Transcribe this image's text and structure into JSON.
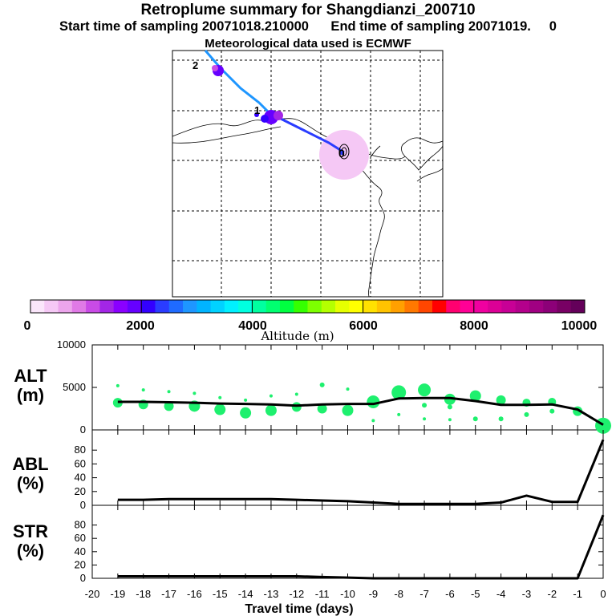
{
  "header": {
    "title": "Retroplume summary for Shangdianzi_200710",
    "sampling_line": "Start time of sampling 20071018.210000      End time of sampling 20071019.     0",
    "met_line": "Meteorological data used is ECMWF"
  },
  "colorbar": {
    "xlabel": "Altitude (m)",
    "ticks": [
      "0",
      "2000",
      "4000",
      "6000",
      "8000",
      "10000"
    ],
    "colors": [
      "#fbe6fb",
      "#f5c8f5",
      "#eca5ec",
      "#e07ae6",
      "#c94be6",
      "#a326e6",
      "#8a00ff",
      "#6600ff",
      "#3300ff",
      "#2a3cff",
      "#1f6bff",
      "#1e96ff",
      "#00b4ff",
      "#00d2ff",
      "#00f0ff",
      "#00ffe0",
      "#00ffa0",
      "#00ff70",
      "#00ff40",
      "#35ff00",
      "#7dff00",
      "#b4ff00",
      "#e6ff00",
      "#ffff00",
      "#ffe100",
      "#ffc300",
      "#ffa000",
      "#ff7800",
      "#ff4600",
      "#ff0000",
      "#ff0070",
      "#ff0096",
      "#f000a0",
      "#dc0096",
      "#c80096",
      "#b4008c",
      "#a00082",
      "#8c0078",
      "#780064",
      "#64005a"
    ]
  },
  "chart_data": [
    {
      "type": "line",
      "panel": "ALT",
      "ylabel": "ALT\n(m)",
      "x": [
        -19,
        -18,
        -17,
        -16,
        -15,
        -14,
        -13,
        -12,
        -11,
        -10,
        -9,
        -8,
        -7,
        -6,
        -5,
        -4,
        -3,
        -2,
        -1,
        0
      ],
      "y": [
        3300,
        3300,
        3250,
        3200,
        3100,
        3050,
        3000,
        2850,
        3000,
        3050,
        3050,
        3700,
        3750,
        3750,
        3400,
        2950,
        2950,
        3000,
        2400,
        600
      ],
      "xlim": [
        -20,
        0
      ],
      "ylim": [
        0,
        10000
      ],
      "yticks": [
        "0",
        "5000",
        "10000"
      ],
      "clusters": {
        "x": [
          -19,
          -19,
          -18,
          -18,
          -17,
          -17,
          -16,
          -16,
          -15,
          -15,
          -14,
          -14,
          -13,
          -13,
          -12,
          -12,
          -11,
          -11,
          -10,
          -10,
          -9,
          -9,
          -8,
          -8,
          -7,
          -7,
          -7,
          -6,
          -6,
          -6,
          -5,
          -5,
          -4,
          -4,
          -3,
          -3,
          -2,
          -2,
          -1,
          0
        ],
        "y": [
          3200,
          5200,
          3000,
          4700,
          2800,
          4500,
          2800,
          4300,
          2400,
          3800,
          2000,
          3500,
          2300,
          4000,
          2700,
          4200,
          2500,
          5300,
          2300,
          4800,
          3300,
          1100,
          4400,
          1800,
          4700,
          2900,
          1300,
          3600,
          2700,
          1200,
          4000,
          1300,
          3500,
          1300,
          3200,
          1800,
          3300,
          2200,
          2200,
          500
        ],
        "r": [
          6,
          2,
          6,
          2,
          6,
          2,
          7,
          2,
          7,
          2,
          7,
          2,
          7,
          2,
          6,
          2,
          6,
          3,
          7,
          2,
          8,
          2,
          9,
          2,
          8,
          3,
          2,
          7,
          3,
          2,
          7,
          3,
          6,
          3,
          5,
          3,
          5,
          3,
          6,
          10
        ]
      }
    },
    {
      "type": "line",
      "panel": "ABL",
      "ylabel": "ABL\n(%)",
      "x": [
        -19,
        -18,
        -17,
        -16,
        -15,
        -14,
        -13,
        -12,
        -11,
        -10,
        -9,
        -8,
        -7,
        -6,
        -5,
        -4,
        -3,
        -2,
        -1,
        0
      ],
      "y": [
        8,
        8,
        9,
        9,
        9,
        9,
        9,
        8,
        7,
        6,
        4,
        2,
        2,
        2,
        2,
        4,
        14,
        5,
        5,
        95
      ],
      "xlim": [
        -20,
        0
      ],
      "ylim": [
        0,
        100
      ],
      "yticks": [
        "0",
        "20",
        "40",
        "60",
        "80"
      ]
    },
    {
      "type": "line",
      "panel": "STR",
      "ylabel": "STR\n(%)",
      "x": [
        -19,
        -18,
        -17,
        -16,
        -15,
        -14,
        -13,
        -12,
        -11,
        -10,
        -9,
        -8,
        -7,
        -6,
        -5,
        -4,
        -3,
        -2,
        -1,
        0
      ],
      "y": [
        3,
        3,
        3,
        3,
        3,
        3,
        3,
        3,
        2,
        1,
        0,
        0,
        0,
        0,
        0,
        0,
        0,
        0,
        0,
        95
      ],
      "xlim": [
        -20,
        0
      ],
      "ylim": [
        0,
        100
      ],
      "yticks": [
        "0",
        "20",
        "40",
        "60",
        "80"
      ],
      "xticks": [
        "-20",
        "-19",
        "-18",
        "-17",
        "-16",
        "-15",
        "-14",
        "-13",
        "-12",
        "-11",
        "-10",
        "-9",
        "-8",
        "-7",
        "-6",
        "-5",
        "-4",
        "-3",
        "-2",
        "-1",
        "0"
      ],
      "xlabel": "Travel time (days)"
    }
  ],
  "map": {
    "cluster_labels": [
      "2",
      "1",
      "0"
    ],
    "path_colors": [
      "#1e8cff",
      "#2a3cff",
      "#6600ff",
      "#c94be6"
    ]
  }
}
